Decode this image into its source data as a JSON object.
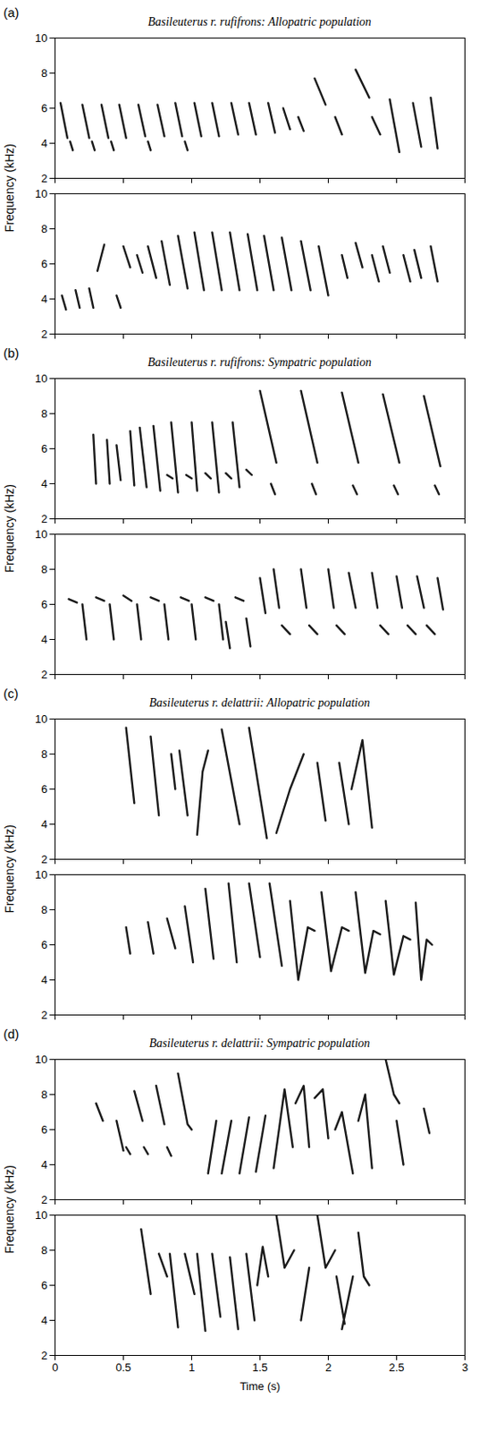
{
  "chart_data": [
    {
      "panel": "(a)",
      "title": "Basileuterus r. rufifrons: Allopatric population",
      "type": "line",
      "ylabel": "Frequency (kHz)",
      "color": "#1a1a1a",
      "xlim": [
        0,
        3
      ],
      "xticks": [
        0,
        0.5,
        1,
        1.5,
        2,
        2.5,
        3
      ],
      "ylim": [
        2,
        10
      ],
      "yticks": [
        2,
        4,
        6,
        8,
        10
      ],
      "tick_labels": "y",
      "x": [
        0.04,
        0.09,
        null,
        0.11,
        0.13,
        null,
        0.2,
        0.25,
        null,
        0.27,
        0.29,
        null,
        0.34,
        0.39,
        null,
        0.41,
        0.43,
        null,
        0.47,
        0.52,
        null,
        0.61,
        0.66,
        null,
        0.68,
        0.7,
        null,
        0.75,
        0.8,
        null,
        0.88,
        0.93,
        null,
        0.95,
        0.97,
        null,
        1.02,
        1.07,
        null,
        1.15,
        1.2,
        null,
        1.29,
        1.34,
        null,
        1.42,
        1.47,
        null,
        1.56,
        1.61,
        null,
        1.67,
        1.72,
        null,
        1.78,
        1.82,
        null,
        1.9,
        1.98,
        null,
        2.05,
        2.1,
        null,
        2.2,
        2.3,
        null,
        2.32,
        2.38,
        null,
        2.45,
        2.52,
        null,
        2.62,
        2.68,
        null,
        2.75,
        2.8
      ],
      "values": [
        6.3,
        4.3,
        null,
        4.1,
        3.6,
        null,
        6.2,
        4.3,
        null,
        4.1,
        3.6,
        null,
        6.2,
        4.3,
        null,
        4.1,
        3.6,
        null,
        6.2,
        4.3,
        null,
        6.2,
        4.4,
        null,
        4.1,
        3.6,
        null,
        6.2,
        4.4,
        null,
        6.3,
        4.4,
        null,
        4.1,
        3.6,
        null,
        6.3,
        4.4,
        null,
        6.3,
        4.4,
        null,
        6.3,
        4.5,
        null,
        6.3,
        4.5,
        null,
        6.3,
        4.6,
        null,
        6.0,
        4.8,
        null,
        5.5,
        4.7,
        null,
        7.7,
        6.2,
        null,
        5.5,
        4.5,
        null,
        8.2,
        6.6,
        null,
        5.5,
        4.5,
        null,
        6.5,
        3.5,
        null,
        6.3,
        3.8,
        null,
        6.6,
        3.7
      ]
    },
    {
      "type": "line",
      "color": "#1a1a1a",
      "xlim": [
        0,
        3
      ],
      "xticks": [
        0,
        0.5,
        1,
        1.5,
        2,
        2.5,
        3
      ],
      "ylim": [
        2,
        10
      ],
      "yticks": [
        2,
        4,
        6,
        8,
        10
      ],
      "tick_labels": "y",
      "x": [
        0.05,
        0.08,
        null,
        0.15,
        0.18,
        null,
        0.25,
        0.28,
        null,
        0.31,
        0.36,
        null,
        0.45,
        0.48,
        null,
        0.5,
        0.55,
        null,
        0.6,
        0.64,
        null,
        0.68,
        0.74,
        null,
        0.78,
        0.84,
        null,
        0.9,
        0.97,
        null,
        1.02,
        1.09,
        null,
        1.15,
        1.22,
        null,
        1.28,
        1.35,
        null,
        1.41,
        1.48,
        null,
        1.53,
        1.6,
        null,
        1.66,
        1.73,
        null,
        1.8,
        1.87,
        null,
        1.93,
        2.0,
        null,
        2.1,
        2.14,
        null,
        2.2,
        2.25,
        null,
        2.32,
        2.37,
        null,
        2.4,
        2.45,
        null,
        2.55,
        2.6,
        null,
        2.63,
        2.68,
        null,
        2.75,
        2.8
      ],
      "values": [
        4.2,
        3.4,
        null,
        4.5,
        3.5,
        null,
        4.6,
        3.5,
        null,
        5.6,
        7.1,
        null,
        4.2,
        3.5,
        null,
        7.0,
        5.8,
        null,
        6.5,
        5.5,
        null,
        7.0,
        5.2,
        null,
        7.3,
        4.8,
        null,
        7.6,
        4.6,
        null,
        7.8,
        4.5,
        null,
        7.8,
        4.5,
        null,
        7.8,
        4.5,
        null,
        7.7,
        4.5,
        null,
        7.6,
        4.5,
        null,
        7.5,
        4.5,
        null,
        7.3,
        4.5,
        null,
        7.0,
        4.2,
        null,
        6.5,
        5.2,
        null,
        7.2,
        5.8,
        null,
        6.5,
        5.0,
        null,
        7.0,
        5.5,
        null,
        6.5,
        5.0,
        null,
        6.8,
        5.2,
        null,
        7.0,
        5.0
      ]
    },
    {
      "panel": "(b)",
      "title": "Basileuterus r. rufifrons: Sympatric population",
      "type": "line",
      "ylabel": "Frequency (kHz)",
      "color": "#1a1a1a",
      "xlim": [
        0,
        3
      ],
      "xticks": [
        0,
        0.5,
        1,
        1.5,
        2,
        2.5,
        3
      ],
      "ylim": [
        2,
        10
      ],
      "yticks": [
        2,
        4,
        6,
        8,
        10
      ],
      "tick_labels": "y",
      "x": [
        0.28,
        0.3,
        null,
        0.38,
        0.4,
        null,
        0.45,
        0.48,
        null,
        0.55,
        0.58,
        null,
        0.62,
        0.67,
        null,
        0.72,
        0.77,
        null,
        0.82,
        0.86,
        null,
        0.85,
        0.9,
        null,
        0.96,
        1.0,
        null,
        1.0,
        1.04,
        null,
        1.1,
        1.14,
        null,
        1.15,
        1.2,
        null,
        1.25,
        1.29,
        null,
        1.3,
        1.35,
        null,
        1.4,
        1.44,
        null,
        1.5,
        1.62,
        null,
        1.58,
        1.61,
        null,
        1.8,
        1.92,
        null,
        1.88,
        1.91,
        null,
        2.1,
        2.22,
        null,
        2.18,
        2.21,
        null,
        2.4,
        2.52,
        null,
        2.48,
        2.51,
        null,
        2.7,
        2.82,
        null,
        2.78,
        2.81
      ],
      "values": [
        6.8,
        4.0,
        null,
        6.5,
        4.0,
        null,
        6.2,
        4.2,
        null,
        7.0,
        3.9,
        null,
        7.2,
        3.8,
        null,
        7.3,
        3.6,
        null,
        4.5,
        4.3,
        null,
        7.5,
        3.5,
        null,
        4.5,
        4.3,
        null,
        7.5,
        3.6,
        null,
        4.6,
        4.3,
        null,
        7.5,
        3.5,
        null,
        4.6,
        4.3,
        null,
        7.5,
        3.8,
        null,
        4.8,
        4.5,
        null,
        9.3,
        5.2,
        null,
        4.0,
        3.4,
        null,
        9.3,
        5.2,
        null,
        4.0,
        3.4,
        null,
        9.2,
        5.2,
        null,
        3.9,
        3.4,
        null,
        9.1,
        5.2,
        null,
        3.9,
        3.4,
        null,
        9.0,
        5.0,
        null,
        3.9,
        3.4
      ]
    },
    {
      "type": "line",
      "color": "#1a1a1a",
      "xlim": [
        0,
        3
      ],
      "xticks": [
        0,
        0.5,
        1,
        1.5,
        2,
        2.5,
        3
      ],
      "ylim": [
        2,
        10
      ],
      "yticks": [
        2,
        4,
        6,
        8,
        10
      ],
      "tick_labels": "y",
      "x": [
        0.1,
        0.16,
        null,
        0.2,
        0.23,
        null,
        0.3,
        0.36,
        null,
        0.4,
        0.43,
        null,
        0.5,
        0.56,
        null,
        0.6,
        0.63,
        null,
        0.7,
        0.76,
        null,
        0.8,
        0.83,
        null,
        0.92,
        0.98,
        null,
        1.0,
        1.03,
        null,
        1.1,
        1.16,
        null,
        1.2,
        1.23,
        null,
        1.25,
        1.28,
        null,
        1.32,
        1.38,
        null,
        1.4,
        1.43,
        null,
        1.5,
        1.54,
        null,
        1.6,
        1.64,
        null,
        1.66,
        1.72,
        null,
        1.8,
        1.84,
        null,
        1.86,
        1.92,
        null,
        2.0,
        2.04,
        null,
        2.06,
        2.12,
        null,
        2.15,
        2.2,
        null,
        2.32,
        2.36,
        null,
        2.38,
        2.44,
        null,
        2.5,
        2.54,
        null,
        2.58,
        2.64,
        null,
        2.65,
        2.7,
        null,
        2.72,
        2.78,
        null,
        2.8,
        2.84
      ],
      "values": [
        6.3,
        6.1,
        null,
        6.0,
        4.0,
        null,
        6.4,
        6.2,
        null,
        6.0,
        4.0,
        null,
        6.5,
        6.2,
        null,
        6.0,
        4.0,
        null,
        6.4,
        6.2,
        null,
        6.0,
        4.0,
        null,
        6.4,
        6.2,
        null,
        6.0,
        4.0,
        null,
        6.4,
        6.2,
        null,
        6.0,
        4.0,
        null,
        5.0,
        3.5,
        null,
        6.4,
        6.2,
        null,
        5.2,
        3.6,
        null,
        7.5,
        5.5,
        null,
        8.0,
        5.8,
        null,
        4.8,
        4.3,
        null,
        8.0,
        5.8,
        null,
        4.8,
        4.3,
        null,
        8.0,
        5.8,
        null,
        4.8,
        4.3,
        null,
        7.8,
        5.8,
        null,
        7.8,
        5.8,
        null,
        4.8,
        4.3,
        null,
        7.6,
        5.8,
        null,
        4.8,
        4.3,
        null,
        7.6,
        5.8,
        null,
        4.8,
        4.3,
        null,
        7.5,
        5.7
      ]
    },
    {
      "panel": "(c)",
      "title": "Basileuterus r. delattrii: Allopatric population",
      "type": "line",
      "ylabel": "Frequency (kHz)",
      "color": "#1a1a1a",
      "xlim": [
        0,
        3
      ],
      "xticks": [
        0,
        0.5,
        1,
        1.5,
        2,
        2.5,
        3
      ],
      "ylim": [
        2,
        10
      ],
      "yticks": [
        2,
        4,
        6,
        8,
        10
      ],
      "tick_labels": "y",
      "x": [
        0.52,
        0.58,
        null,
        0.7,
        0.76,
        null,
        0.85,
        0.88,
        null,
        0.91,
        0.97,
        null,
        1.04,
        1.08,
        1.12,
        null,
        1.22,
        1.35,
        null,
        1.42,
        1.55,
        null,
        1.62,
        1.72,
        1.82,
        null,
        1.92,
        1.98,
        null,
        2.08,
        2.15,
        null,
        2.17,
        2.25,
        2.32
      ],
      "values": [
        9.5,
        5.2,
        null,
        9.0,
        4.5,
        null,
        8.0,
        6.0,
        null,
        8.2,
        4.5,
        null,
        3.4,
        7.0,
        8.2,
        null,
        9.4,
        4.0,
        null,
        9.5,
        3.2,
        null,
        3.5,
        6.0,
        8.0,
        null,
        7.5,
        4.2,
        null,
        7.5,
        4.0,
        null,
        6.0,
        8.8,
        3.8
      ]
    },
    {
      "type": "line",
      "color": "#1a1a1a",
      "xlim": [
        0,
        3
      ],
      "xticks": [
        0,
        0.5,
        1,
        1.5,
        2,
        2.5,
        3
      ],
      "ylim": [
        2,
        10
      ],
      "yticks": [
        2,
        4,
        6,
        8,
        10
      ],
      "tick_labels": "y",
      "x": [
        0.52,
        0.55,
        null,
        0.68,
        0.72,
        null,
        0.82,
        0.88,
        null,
        0.95,
        1.01,
        null,
        1.1,
        1.16,
        null,
        1.27,
        1.33,
        null,
        1.42,
        1.5,
        null,
        1.57,
        1.66,
        null,
        1.72,
        1.78,
        1.85,
        1.9,
        null,
        1.95,
        2.02,
        2.1,
        2.15,
        null,
        2.2,
        2.27,
        2.33,
        2.38,
        null,
        2.42,
        2.48,
        2.55,
        2.6,
        null,
        2.64,
        2.68,
        2.72,
        2.76
      ],
      "values": [
        7.0,
        5.5,
        null,
        7.3,
        5.5,
        null,
        7.5,
        5.8,
        null,
        8.2,
        5.0,
        null,
        9.2,
        5.2,
        null,
        9.5,
        5.0,
        null,
        9.5,
        5.3,
        null,
        9.5,
        4.8,
        null,
        8.5,
        4.0,
        7.0,
        6.8,
        null,
        9.0,
        4.5,
        7.0,
        6.8,
        null,
        9.0,
        4.4,
        6.8,
        6.6,
        null,
        8.5,
        4.3,
        6.5,
        6.3,
        null,
        8.4,
        4.0,
        6.3,
        6.0
      ]
    },
    {
      "panel": "(d)",
      "title": "Basileuterus r. delattrii: Sympatric population",
      "type": "line",
      "ylabel": "Frequency (kHz)",
      "color": "#1a1a1a",
      "xlim": [
        0,
        3
      ],
      "xticks": [
        0,
        0.5,
        1,
        1.5,
        2,
        2.5,
        3
      ],
      "ylim": [
        2,
        10
      ],
      "yticks": [
        2,
        4,
        6,
        8,
        10
      ],
      "tick_labels": "y",
      "x": [
        0.3,
        0.35,
        null,
        0.45,
        0.5,
        null,
        0.52,
        0.55,
        null,
        0.58,
        0.64,
        null,
        0.65,
        0.68,
        null,
        0.74,
        0.8,
        null,
        0.82,
        0.85,
        null,
        0.9,
        0.97,
        1.0,
        null,
        1.12,
        1.18,
        null,
        1.22,
        1.29,
        null,
        1.35,
        1.42,
        null,
        1.47,
        1.54,
        null,
        1.6,
        1.68,
        1.74,
        null,
        1.76,
        1.82,
        1.86,
        null,
        1.9,
        1.96,
        2.0,
        null,
        2.05,
        2.1,
        2.18,
        null,
        2.22,
        2.27,
        2.32,
        null,
        2.42,
        2.48,
        2.52,
        null,
        2.5,
        2.55,
        null,
        2.7,
        2.74
      ],
      "values": [
        7.5,
        6.5,
        null,
        6.5,
        4.8,
        null,
        5.0,
        4.6,
        null,
        8.2,
        6.5,
        null,
        5.0,
        4.6,
        null,
        8.5,
        6.3,
        null,
        5.0,
        4.5,
        null,
        9.2,
        6.3,
        6.0,
        null,
        3.5,
        6.5,
        null,
        3.5,
        6.5,
        null,
        3.5,
        6.7,
        null,
        3.6,
        6.8,
        null,
        3.8,
        8.3,
        5.0,
        null,
        7.5,
        8.5,
        5.0,
        null,
        7.8,
        8.3,
        5.5,
        null,
        6.0,
        7.0,
        3.5,
        null,
        6.5,
        8.0,
        3.8,
        null,
        10.0,
        8.0,
        7.5,
        null,
        6.5,
        4.0,
        null,
        7.2,
        5.8
      ]
    },
    {
      "type": "line",
      "xlabel": "Time (s)",
      "color": "#1a1a1a",
      "xlim": [
        0,
        3
      ],
      "xticks": [
        0,
        0.5,
        1,
        1.5,
        2,
        2.5,
        3
      ],
      "ylim": [
        2,
        10
      ],
      "yticks": [
        2,
        4,
        6,
        8,
        10
      ],
      "x": [
        0.63,
        0.7,
        null,
        0.76,
        0.82,
        null,
        0.84,
        0.9,
        null,
        0.95,
        1.02,
        null,
        1.04,
        1.1,
        null,
        1.15,
        1.21,
        null,
        1.28,
        1.34,
        null,
        1.4,
        1.46,
        null,
        1.48,
        1.52,
        1.56,
        null,
        1.62,
        1.68,
        1.75,
        null,
        1.8,
        1.86,
        null,
        1.92,
        1.98,
        2.05,
        null,
        2.06,
        2.12,
        null,
        2.1,
        2.18,
        null,
        2.22,
        2.26,
        2.3
      ],
      "values": [
        9.2,
        5.5,
        null,
        7.8,
        6.5,
        null,
        7.8,
        3.6,
        null,
        7.8,
        5.5,
        null,
        7.8,
        3.4,
        null,
        7.8,
        4.2,
        null,
        7.6,
        3.5,
        null,
        7.8,
        4.0,
        null,
        6.0,
        8.2,
        6.5,
        null,
        10.0,
        7.0,
        8.0,
        null,
        4.0,
        7.0,
        null,
        10.0,
        7.0,
        8.0,
        null,
        6.5,
        3.8,
        null,
        3.5,
        6.5,
        null,
        9.0,
        6.5,
        6.0
      ]
    }
  ]
}
